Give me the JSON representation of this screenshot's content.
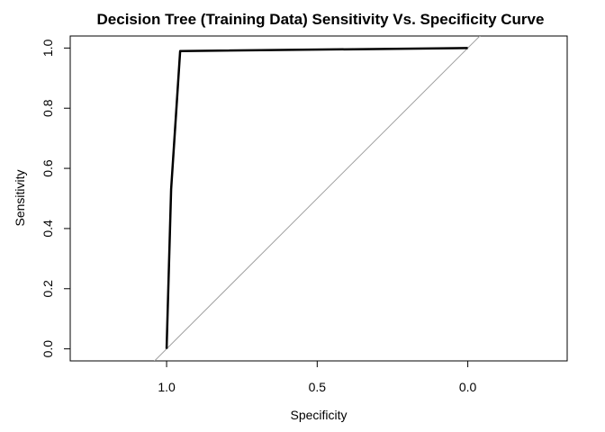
{
  "chart_data": {
    "type": "line",
    "title": "Decision Tree (Training Data) Sensitivity Vs. Specificity Curve",
    "xlabel": "Specificity",
    "ylabel": "Sensitivity",
    "xlim": [
      1.32,
      -0.33
    ],
    "ylim": [
      -0.04,
      1.04
    ],
    "x_reversed": true,
    "xticks": [
      1.0,
      0.5,
      0.0
    ],
    "xtick_labels": [
      "1.0",
      "0.5",
      "0.0"
    ],
    "yticks": [
      0.0,
      0.2,
      0.4,
      0.6,
      0.8,
      1.0
    ],
    "ytick_labels": [
      "0.0",
      "0.2",
      "0.4",
      "0.6",
      "0.8",
      "1.0"
    ],
    "grid": false,
    "legend": "none",
    "series": [
      {
        "x": [
          1.0,
          0.985,
          0.955,
          0.0
        ],
        "y": [
          0.0,
          0.53,
          0.99,
          1.0
        ],
        "color": "#000000",
        "style": "solid-thick"
      }
    ],
    "reference_line": {
      "x": [
        1.05,
        -0.05
      ],
      "y": [
        -0.05,
        1.05
      ],
      "color": "#a0a0a0"
    }
  }
}
